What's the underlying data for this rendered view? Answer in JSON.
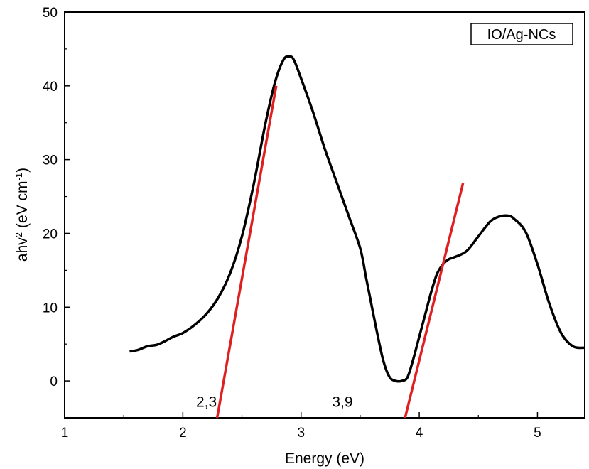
{
  "chart_data": {
    "type": "line",
    "title": "",
    "xlabel": "Energy (eV)",
    "ylabel": "ahv",
    "ylabel_sup": "2",
    "ylabel_unit": "(eV cm",
    "ylabel_unit_sup": "-1",
    "ylabel_close": ")",
    "xlim": [
      1,
      5.4
    ],
    "ylim": [
      -5,
      50
    ],
    "xticks": [
      1,
      2,
      3,
      4,
      5
    ],
    "yticks": [
      0,
      10,
      20,
      30,
      40,
      50
    ],
    "legend": "IO/Ag-NCs",
    "legend_position": "top-right",
    "colors": {
      "series": "#000000",
      "fit": "#e02020"
    },
    "series": [
      {
        "name": "IO/Ag-NCs",
        "x": [
          1.55,
          1.62,
          1.7,
          1.78,
          1.85,
          1.92,
          2.0,
          2.1,
          2.2,
          2.3,
          2.4,
          2.5,
          2.6,
          2.7,
          2.78,
          2.85,
          2.9,
          2.94,
          3.0,
          3.1,
          3.2,
          3.3,
          3.4,
          3.5,
          3.55,
          3.6,
          3.65,
          3.7,
          3.75,
          3.8,
          3.85,
          3.9,
          3.95,
          4.0,
          4.05,
          4.1,
          4.15,
          4.2,
          4.25,
          4.3,
          4.4,
          4.5,
          4.6,
          4.68,
          4.75,
          4.8,
          4.9,
          5.0,
          5.1,
          5.2,
          5.3,
          5.4
        ],
        "y": [
          4.0,
          4.2,
          4.7,
          4.9,
          5.4,
          6.0,
          6.5,
          7.6,
          9.1,
          11.3,
          14.6,
          19.6,
          26.7,
          35.0,
          40.5,
          43.5,
          44.0,
          43.5,
          41.0,
          36.5,
          31.5,
          27.0,
          22.5,
          18.0,
          14.0,
          10.0,
          6.0,
          2.5,
          0.5,
          0.0,
          0.0,
          0.5,
          3.0,
          6.0,
          9.0,
          12.0,
          14.5,
          15.8,
          16.5,
          16.8,
          17.6,
          19.6,
          21.6,
          22.3,
          22.4,
          22.0,
          20.2,
          15.8,
          10.5,
          6.5,
          4.7,
          4.5
        ]
      }
    ],
    "fits": [
      {
        "name": "fit-1",
        "x": [
          2.29,
          2.79
        ],
        "y": [
          -5,
          40
        ]
      },
      {
        "name": "fit-2",
        "x": [
          3.88,
          4.37
        ],
        "y": [
          -5,
          26.8
        ]
      }
    ],
    "annotations": [
      {
        "text": "2,3",
        "x": 2.2,
        "y": -3.5
      },
      {
        "text": "3,9",
        "x": 3.35,
        "y": -3.5
      }
    ]
  }
}
